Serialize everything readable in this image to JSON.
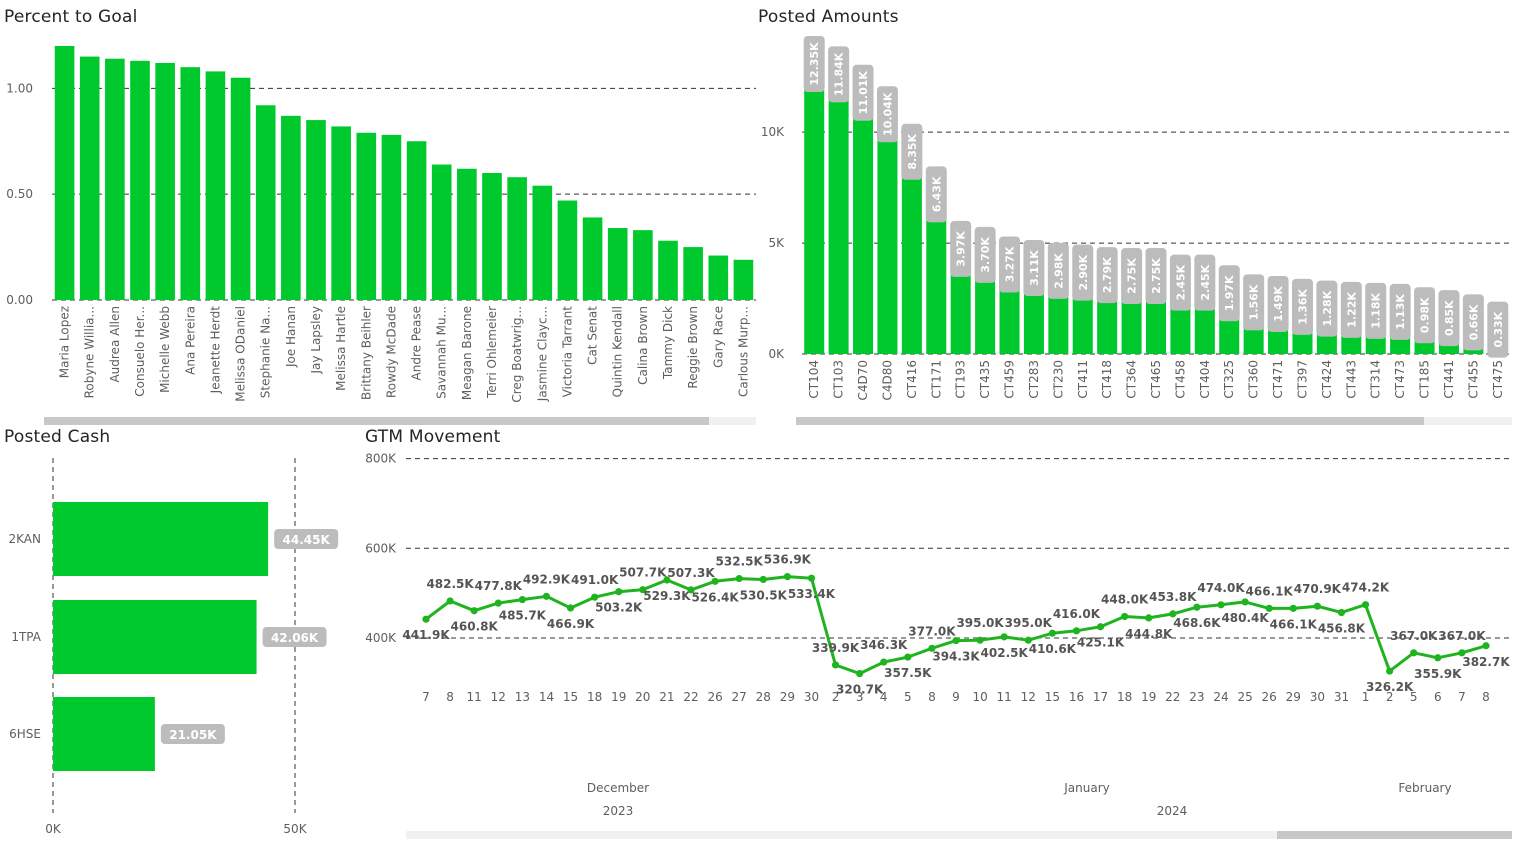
{
  "colors": {
    "bar": "#00c92d",
    "line": "#1fb41f",
    "label_bg": "#bcbcbc",
    "label_text": "#ffffff",
    "axis_text": "#605e5c",
    "grid": "#333333"
  },
  "panels": {
    "percent_to_goal": {
      "title": "Percent to Goal"
    },
    "posted_amounts": {
      "title": "Posted Amounts"
    },
    "posted_cash": {
      "title": "Posted Cash"
    },
    "gtm_movement": {
      "title": "GTM Movement"
    }
  },
  "chart_data": [
    {
      "id": "percent_to_goal",
      "type": "bar",
      "title": "Percent to Goal",
      "categories": [
        "Maria Lopez",
        "Robyne Willia...",
        "Audrea Allen",
        "Consuelo Her...",
        "Michelle Webb",
        "Ana Pereira",
        "Jeanette Herdt",
        "Melissa ODaniel",
        "Stephanie Na...",
        "Joe Hanan",
        "Jay Lapsley",
        "Melissa Hartle",
        "Brittany Beihler",
        "Rowdy McDade",
        "Andre Pease",
        "Savannah Mu...",
        "Meagan Barone",
        "Terri Ohlemeier",
        "Creg Boatwrig...",
        "Jasmine Clayc...",
        "Victoria Tarrant",
        "Cat Senat",
        "Quintin Kendall",
        "Calina Brown",
        "Tammy Dick",
        "Reggie Brown",
        "Gary Race",
        "Carlous Murp..."
      ],
      "values": [
        1.2,
        1.15,
        1.14,
        1.13,
        1.12,
        1.1,
        1.08,
        1.05,
        0.92,
        0.87,
        0.85,
        0.82,
        0.79,
        0.78,
        0.75,
        0.64,
        0.62,
        0.6,
        0.58,
        0.54,
        0.47,
        0.39,
        0.34,
        0.33,
        0.28,
        0.25,
        0.21,
        0.19
      ],
      "yticks": [
        "0.00",
        "0.50",
        "1.00"
      ],
      "ylim": [
        0,
        1.2
      ],
      "grid": true
    },
    {
      "id": "posted_amounts",
      "type": "bar",
      "title": "Posted Amounts",
      "categories": [
        "CT104",
        "CT103",
        "C4D70",
        "C4D80",
        "CT416",
        "CT171",
        "CT193",
        "CT435",
        "CT459",
        "CT283",
        "CT230",
        "CT411",
        "CT418",
        "CT364",
        "CT465",
        "CT458",
        "CT404",
        "CT325",
        "CT360",
        "CT471",
        "CT397",
        "CT424",
        "CT443",
        "CT314",
        "CT473",
        "CT185",
        "CT441",
        "CT455",
        "CT475"
      ],
      "values": [
        12.35,
        11.84,
        11.01,
        10.04,
        8.35,
        6.43,
        3.97,
        3.7,
        3.27,
        3.11,
        2.98,
        2.9,
        2.79,
        2.75,
        2.75,
        2.45,
        2.45,
        1.97,
        1.56,
        1.49,
        1.36,
        1.28,
        1.22,
        1.18,
        1.13,
        0.98,
        0.85,
        0.66,
        0.33
      ],
      "labels": [
        "12.35K",
        "11.84K",
        "11.01K",
        "10.04K",
        "8.35K",
        "6.43K",
        "3.97K",
        "3.70K",
        "3.27K",
        "3.11K",
        "2.98K",
        "2.90K",
        "2.79K",
        "2.75K",
        "2.75K",
        "2.45K",
        "2.45K",
        "1.97K",
        "1.56K",
        "1.49K",
        "1.36K",
        "1.28K",
        "1.22K",
        "1.18K",
        "1.13K",
        "0.98K",
        "0.85K",
        "0.66K",
        "0.33K"
      ],
      "unit": "thousands",
      "yticks": [
        "0K",
        "5K",
        "10K"
      ],
      "ylim": [
        0,
        12.35
      ],
      "grid": true
    },
    {
      "id": "posted_cash",
      "type": "bar",
      "orientation": "horizontal",
      "title": "Posted Cash",
      "categories": [
        "2KAN",
        "1TPA",
        "6HSE"
      ],
      "values": [
        44.45,
        42.06,
        21.05
      ],
      "labels": [
        "44.45K",
        "42.06K",
        "21.05K"
      ],
      "unit": "thousands",
      "xticks": [
        "0K",
        "50K"
      ],
      "xlim": [
        0,
        50
      ],
      "grid": true
    },
    {
      "id": "gtm_movement",
      "type": "line",
      "title": "GTM Movement",
      "x": [
        "7",
        "8",
        "11",
        "12",
        "13",
        "14",
        "15",
        "18",
        "19",
        "20",
        "21",
        "22",
        "26",
        "27",
        "28",
        "29",
        "30",
        "2",
        "3",
        "4",
        "5",
        "8",
        "9",
        "10",
        "11",
        "12",
        "15",
        "16",
        "17",
        "18",
        "19",
        "22",
        "23",
        "24",
        "25",
        "26",
        "29",
        "30",
        "31",
        "1",
        "2",
        "5",
        "6",
        "7",
        "8"
      ],
      "values": [
        441.9,
        482.5,
        460.8,
        477.8,
        485.7,
        492.9,
        466.9,
        491.0,
        503.2,
        507.7,
        529.3,
        507.3,
        526.4,
        532.5,
        530.5,
        536.9,
        533.4,
        339.9,
        320.7,
        346.3,
        357.5,
        377.0,
        394.3,
        395.0,
        402.5,
        395.0,
        410.6,
        416.0,
        425.1,
        448.0,
        444.8,
        453.8,
        468.6,
        474.0,
        480.4,
        466.1,
        466.1,
        470.9,
        456.8,
        474.2,
        326.2,
        367.0,
        355.9,
        367.0,
        382.7
      ],
      "labels": [
        "441.9K",
        "482.5K",
        "460.8K",
        "477.8K",
        "485.7K",
        "492.9K",
        "466.9K",
        "491.0K",
        "503.2K",
        "507.7K",
        "529.3K",
        "507.3K",
        "526.4K",
        "532.5K",
        "530.5K",
        "536.9K",
        "533.4K",
        "339.9K",
        "320.7K",
        "346.3K",
        "357.5K",
        "377.0K",
        "394.3K",
        "395.0K",
        "402.5K",
        "395.0K",
        "410.6K",
        "416.0K",
        "425.1K",
        "448.0K",
        "444.8K",
        "453.8K",
        "468.6K",
        "474.0K",
        "480.4K",
        "466.1K",
        "466.1K",
        "470.9K",
        "456.8K",
        "474.2K",
        "326.2K",
        "367.0K",
        "355.9K",
        "367.0K",
        "382.7K"
      ],
      "unit": "thousands",
      "yticks": [
        "400K",
        "600K",
        "800K"
      ],
      "ylim": [
        300,
        800
      ],
      "months": [
        {
          "name": "December",
          "year": "2023"
        },
        {
          "name": "January",
          "year": "2024"
        },
        {
          "name": "February",
          "year": ""
        }
      ],
      "grid": true
    }
  ]
}
